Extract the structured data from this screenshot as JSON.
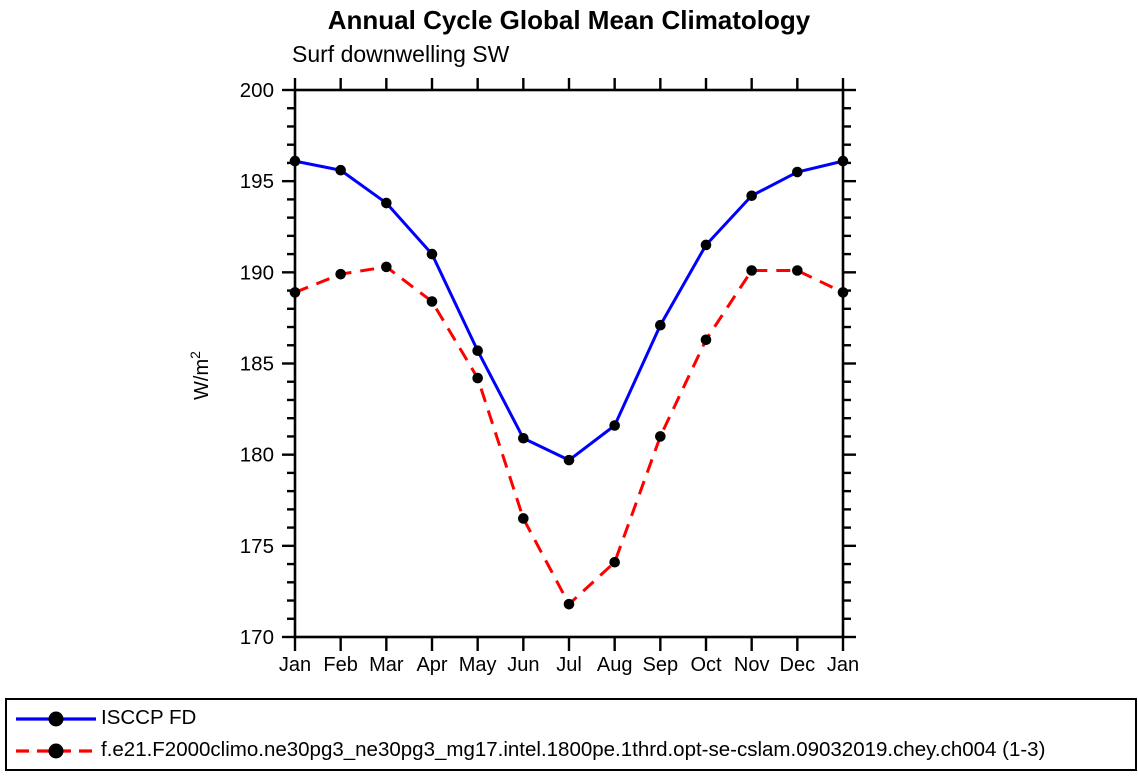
{
  "chart_data": {
    "type": "line",
    "title": "Annual Cycle Global Mean Climatology",
    "subtitle": "Surf downwelling SW",
    "xlabel": "",
    "ylabel": "W/m²",
    "categories": [
      "Jan",
      "Feb",
      "Mar",
      "Apr",
      "May",
      "Jun",
      "Jul",
      "Aug",
      "Sep",
      "Oct",
      "Nov",
      "Dec",
      "Jan"
    ],
    "ylim": [
      170,
      200
    ],
    "ytick_major_step": 5,
    "ytick_minor_step": 1,
    "ytick_labels": [
      "170",
      "175",
      "180",
      "185",
      "190",
      "195",
      "200"
    ],
    "grid": false,
    "legend_position": "bottom",
    "axis_color": "#000000",
    "marker_color": "#000000",
    "series": [
      {
        "name": "ISCCP FD",
        "color": "#0000ff",
        "line_style": "solid",
        "marker": "circle",
        "values": [
          196.1,
          195.6,
          193.8,
          191.0,
          185.7,
          180.9,
          179.7,
          181.6,
          187.1,
          191.5,
          194.2,
          195.5,
          196.1
        ]
      },
      {
        "name": "f.e21.F2000climo.ne30pg3_ne30pg3_mg17.intel.1800pe.1thrd.opt-se-cslam.09032019.chey.ch004 (1-3)",
        "color": "#ff0000",
        "line_style": "dashed",
        "marker": "circle",
        "values": [
          188.9,
          189.9,
          190.3,
          188.4,
          184.2,
          176.5,
          171.8,
          174.1,
          181.0,
          186.3,
          190.1,
          190.1,
          188.9
        ]
      }
    ]
  }
}
